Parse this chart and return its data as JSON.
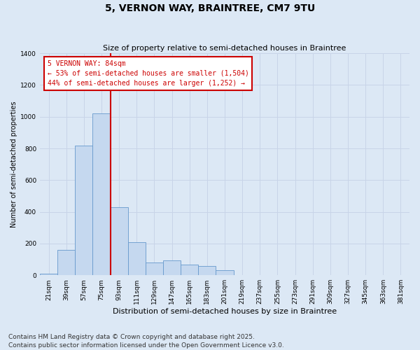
{
  "title": "5, VERNON WAY, BRAINTREE, CM7 9TU",
  "subtitle": "Size of property relative to semi-detached houses in Braintree",
  "xlabel": "Distribution of semi-detached houses by size in Braintree",
  "ylabel": "Number of semi-detached properties",
  "categories": [
    "21sqm",
    "39sqm",
    "57sqm",
    "75sqm",
    "93sqm",
    "111sqm",
    "129sqm",
    "147sqm",
    "165sqm",
    "183sqm",
    "201sqm",
    "219sqm",
    "237sqm",
    "255sqm",
    "273sqm",
    "291sqm",
    "309sqm",
    "327sqm",
    "345sqm",
    "363sqm",
    "381sqm"
  ],
  "values": [
    10,
    160,
    820,
    1020,
    430,
    210,
    80,
    95,
    65,
    60,
    30,
    0,
    0,
    0,
    0,
    0,
    0,
    0,
    0,
    0,
    0
  ],
  "bar_color": "#c5d8ef",
  "bar_edge_color": "#6699cc",
  "vline_index": 3,
  "annotation_text": "5 VERNON WAY: 84sqm\n← 53% of semi-detached houses are smaller (1,504)\n44% of semi-detached houses are larger (1,252) →",
  "annotation_box_color": "#ffffff",
  "annotation_box_edge_color": "#cc0000",
  "annotation_text_color": "#cc0000",
  "vline_color": "#cc0000",
  "grid_color": "#c8d4e8",
  "background_color": "#dce8f5",
  "ylim": [
    0,
    1400
  ],
  "yticks": [
    0,
    200,
    400,
    600,
    800,
    1000,
    1200,
    1400
  ],
  "footer_line1": "Contains HM Land Registry data © Crown copyright and database right 2025.",
  "footer_line2": "Contains public sector information licensed under the Open Government Licence v3.0.",
  "title_fontsize": 10,
  "subtitle_fontsize": 8,
  "xlabel_fontsize": 8,
  "ylabel_fontsize": 7,
  "tick_fontsize": 6.5,
  "annotation_fontsize": 7,
  "footer_fontsize": 6.5
}
